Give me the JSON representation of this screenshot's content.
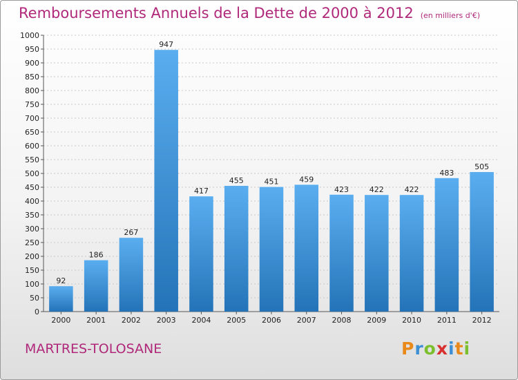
{
  "header": {
    "title": "Remboursements Annuels de la Dette de 2000 à 2012",
    "subtitle": "(en milliers d'€)"
  },
  "footer": {
    "commune": "MARTRES-TOLOSANE",
    "logo": {
      "letters": [
        "P",
        "r",
        "o",
        "x",
        "i",
        "t",
        "i"
      ],
      "colors": [
        "#e8891a",
        "#3c8fd4",
        "#7bbf2e",
        "#d8302f",
        "#3c8fd4",
        "#e8891a",
        "#7bbf2e"
      ]
    }
  },
  "colors": {
    "bar_light": "#5aaef0",
    "bar_dark": "#2473b8",
    "title": "#b0287a"
  },
  "chart_data": {
    "type": "bar",
    "categories": [
      "2000",
      "2001",
      "2002",
      "2003",
      "2004",
      "2005",
      "2006",
      "2007",
      "2008",
      "2009",
      "2010",
      "2011",
      "2012"
    ],
    "values": [
      92,
      186,
      267,
      947,
      417,
      455,
      451,
      459,
      423,
      422,
      422,
      483,
      505
    ],
    "ylim": [
      0,
      1000
    ],
    "yticks": [
      0,
      50,
      100,
      150,
      200,
      250,
      300,
      350,
      400,
      450,
      500,
      550,
      600,
      650,
      700,
      750,
      800,
      850,
      900,
      950,
      1000
    ],
    "grid": true,
    "xlabel": "",
    "ylabel": ""
  }
}
